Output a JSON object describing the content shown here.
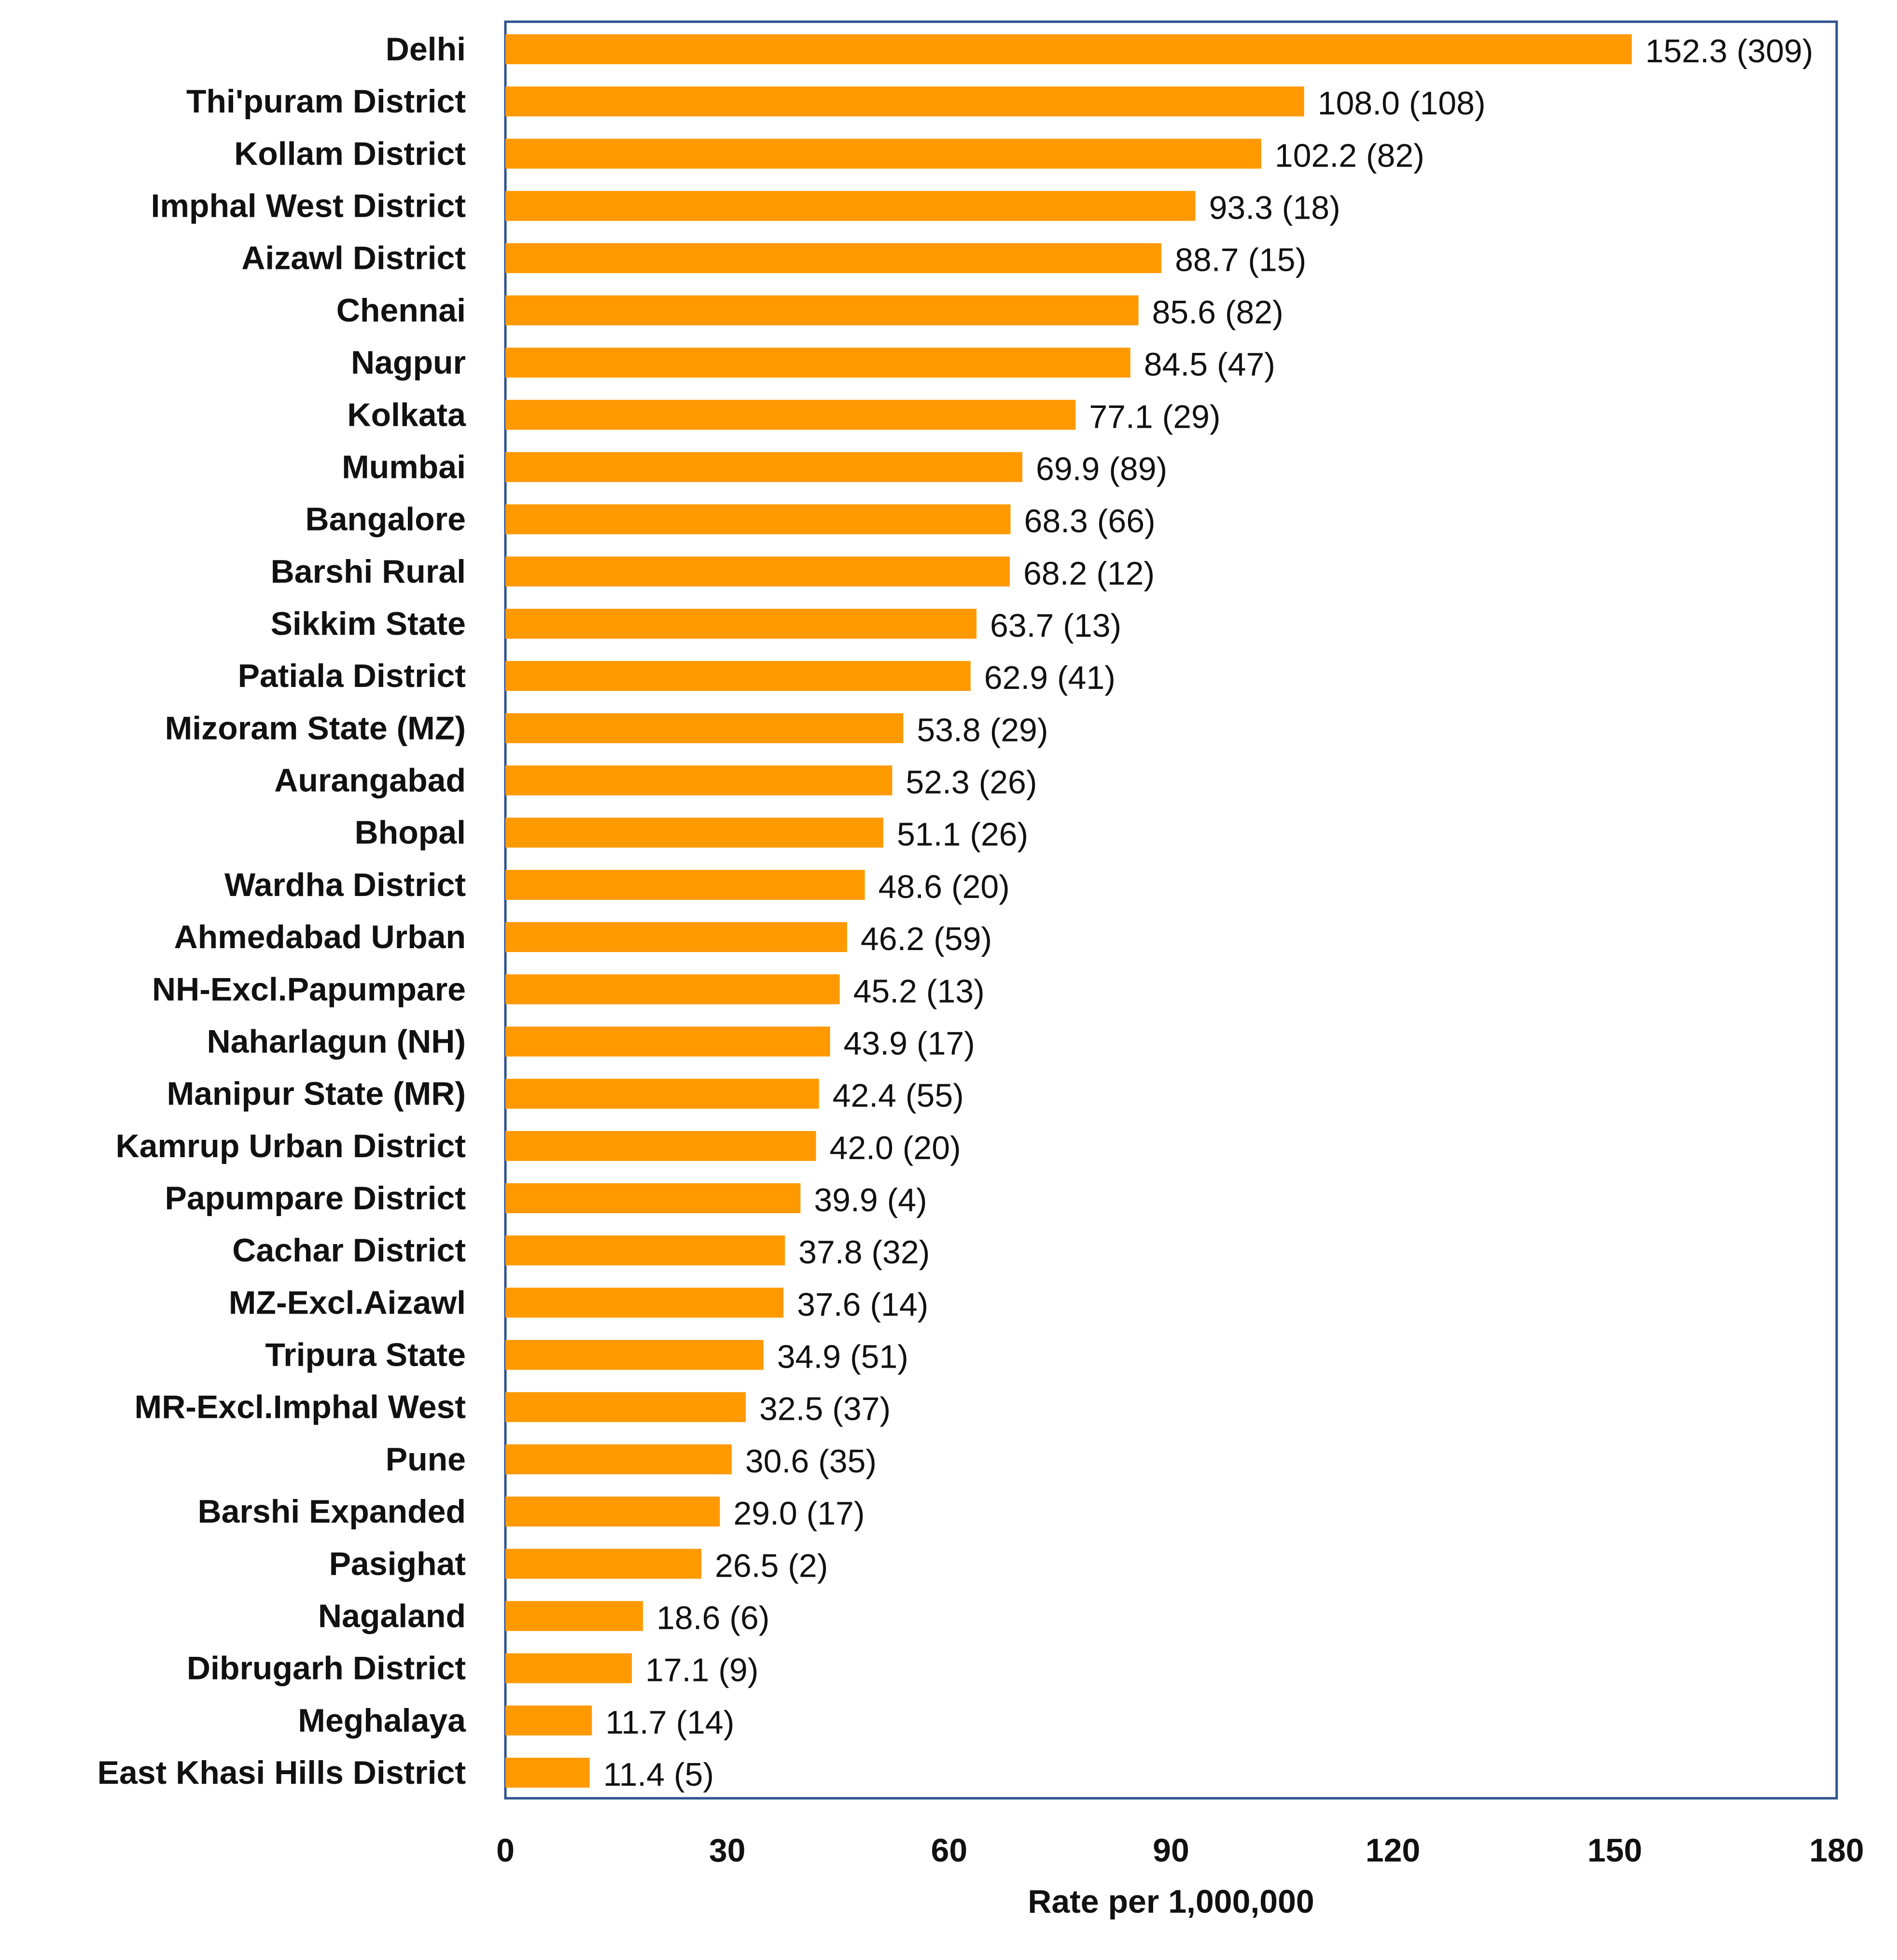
{
  "chart_data": {
    "type": "bar",
    "orientation": "horizontal",
    "title": "",
    "xlabel": "Rate per 1,000,000",
    "ylabel": "",
    "xlim": [
      0,
      180
    ],
    "xticks": [
      0,
      30,
      60,
      90,
      120,
      150,
      180
    ],
    "grid": false,
    "bar_color": "#FF9900",
    "frame_color": "#2F528F",
    "categories": [
      "Delhi",
      "Thi'puram District",
      "Kollam District",
      "Imphal West District",
      "Aizawl District",
      "Chennai",
      "Nagpur",
      "Kolkata",
      "Mumbai",
      "Bangalore",
      "Barshi Rural",
      "Sikkim State",
      "Patiala District",
      "Mizoram State (MZ)",
      "Aurangabad",
      "Bhopal",
      "Wardha District",
      "Ahmedabad Urban",
      "NH-Excl.Papumpare",
      "Naharlagun (NH)",
      "Manipur State (MR)",
      "Kamrup Urban District",
      "Papumpare District",
      "Cachar District",
      "MZ-Excl.Aizawl",
      "Tripura State",
      "MR-Excl.Imphal West",
      "Pune",
      "Barshi Expanded",
      "Pasighat",
      "Nagaland",
      "Dibrugarh District",
      "Meghalaya",
      "East Khasi Hills District"
    ],
    "values": [
      152.3,
      108.0,
      102.2,
      93.3,
      88.7,
      85.6,
      84.5,
      77.1,
      69.9,
      68.3,
      68.2,
      63.7,
      62.9,
      53.8,
      52.3,
      51.1,
      48.6,
      46.2,
      45.2,
      43.9,
      42.4,
      42.0,
      39.9,
      37.8,
      37.6,
      34.9,
      32.5,
      30.6,
      29.0,
      26.5,
      18.6,
      17.1,
      11.7,
      11.4
    ],
    "data_labels": [
      "152.3 (309)",
      "108.0 (108)",
      "102.2 (82)",
      "93.3 (18)",
      "88.7 (15)",
      "85.6 (82)",
      "84.5 (47)",
      "77.1 (29)",
      "69.9 (89)",
      "68.3 (66)",
      "68.2 (12)",
      "63.7 (13)",
      "62.9 (41)",
      "53.8 (29)",
      "52.3 (26)",
      "51.1 (26)",
      "48.6 (20)",
      "46.2 (59)",
      "45.2 (13)",
      "43.9 (17)",
      "42.4 (55)",
      "42.0 (20)",
      "39.9 (4)",
      "37.8 (32)",
      "37.6 (14)",
      "34.9 (51)",
      "32.5 (37)",
      "30.6 (35)",
      "29.0 (17)",
      "26.5 (2)",
      "18.6 (6)",
      "17.1 (9)",
      "11.7 (14)",
      "11.4 (5)"
    ]
  }
}
